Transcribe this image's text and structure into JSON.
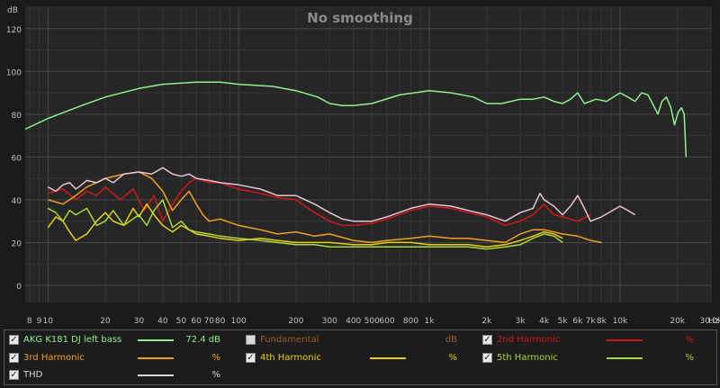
{
  "chart_data": {
    "type": "line",
    "title": "No smoothing",
    "y_unit": "dB",
    "x_unit": "Hz",
    "ylim": [
      -8,
      130
    ],
    "xlim": [
      7.6,
      30000
    ],
    "xscale": "log",
    "grid": true,
    "y_ticks": [
      "0",
      "20",
      "40",
      "60",
      "80",
      "100",
      "120"
    ],
    "x_ticks": [
      {
        "v": 8,
        "t": "8"
      },
      {
        "v": 9,
        "t": "9"
      },
      {
        "v": 10,
        "t": "10"
      },
      {
        "v": 20,
        "t": "20"
      },
      {
        "v": 30,
        "t": "30"
      },
      {
        "v": 40,
        "t": "40"
      },
      {
        "v": 50,
        "t": "50"
      },
      {
        "v": 60,
        "t": "60"
      },
      {
        "v": 70,
        "t": "70"
      },
      {
        "v": 80,
        "t": "80"
      },
      {
        "v": 100,
        "t": "100"
      },
      {
        "v": 200,
        "t": "200"
      },
      {
        "v": 300,
        "t": "300"
      },
      {
        "v": 400,
        "t": "400"
      },
      {
        "v": 500,
        "t": "500"
      },
      {
        "v": 600,
        "t": "600"
      },
      {
        "v": 800,
        "t": "800"
      },
      {
        "v": 1000,
        "t": "1k"
      },
      {
        "v": 2000,
        "t": "2k"
      },
      {
        "v": 3000,
        "t": "3k"
      },
      {
        "v": 4000,
        "t": "4k"
      },
      {
        "v": 5000,
        "t": "5k"
      },
      {
        "v": 6000,
        "t": "6k"
      },
      {
        "v": 7000,
        "t": "7k"
      },
      {
        "v": 8000,
        "t": "8k"
      },
      {
        "v": 10000,
        "t": "10k"
      },
      {
        "v": 20000,
        "t": "20k"
      },
      {
        "v": 30000,
        "t": "30.0k"
      }
    ],
    "series": [
      {
        "key": "main",
        "color": "#8ef08e",
        "points": [
          [
            7.6,
            73
          ],
          [
            10,
            78
          ],
          [
            15,
            84
          ],
          [
            20,
            88
          ],
          [
            30,
            92
          ],
          [
            40,
            94
          ],
          [
            60,
            95
          ],
          [
            80,
            95
          ],
          [
            100,
            94
          ],
          [
            150,
            93
          ],
          [
            200,
            91
          ],
          [
            260,
            88
          ],
          [
            300,
            85
          ],
          [
            350,
            84
          ],
          [
            400,
            84
          ],
          [
            500,
            85
          ],
          [
            700,
            89
          ],
          [
            1000,
            91
          ],
          [
            1300,
            90
          ],
          [
            1700,
            88
          ],
          [
            2000,
            85
          ],
          [
            2400,
            85
          ],
          [
            3000,
            87
          ],
          [
            3500,
            87
          ],
          [
            4000,
            88
          ],
          [
            4500,
            86
          ],
          [
            5000,
            85
          ],
          [
            5500,
            87
          ],
          [
            6000,
            90
          ],
          [
            6500,
            85
          ],
          [
            7500,
            87
          ],
          [
            8500,
            86
          ],
          [
            10000,
            90
          ],
          [
            11000,
            88
          ],
          [
            12000,
            86
          ],
          [
            13000,
            90
          ],
          [
            14000,
            89
          ],
          [
            15000,
            84
          ],
          [
            15800,
            80
          ],
          [
            16600,
            86
          ],
          [
            17500,
            88
          ],
          [
            18500,
            83
          ],
          [
            19300,
            75
          ],
          [
            20200,
            81
          ],
          [
            21000,
            83
          ],
          [
            21700,
            80
          ],
          [
            22200,
            60
          ]
        ]
      },
      {
        "key": "h2",
        "color": "#d01818",
        "points": [
          [
            10,
            43
          ],
          [
            12,
            45
          ],
          [
            14,
            40
          ],
          [
            16,
            44
          ],
          [
            18,
            42
          ],
          [
            20,
            46
          ],
          [
            24,
            40
          ],
          [
            28,
            45
          ],
          [
            32,
            35
          ],
          [
            36,
            42
          ],
          [
            40,
            30
          ],
          [
            45,
            38
          ],
          [
            50,
            44
          ],
          [
            55,
            48
          ],
          [
            60,
            50
          ],
          [
            70,
            48
          ],
          [
            80,
            48
          ],
          [
            100,
            45
          ],
          [
            130,
            43
          ],
          [
            160,
            41
          ],
          [
            200,
            40
          ],
          [
            250,
            34
          ],
          [
            300,
            30
          ],
          [
            350,
            28
          ],
          [
            400,
            28
          ],
          [
            500,
            29
          ],
          [
            600,
            31
          ],
          [
            800,
            35
          ],
          [
            1000,
            37
          ],
          [
            1300,
            36
          ],
          [
            1600,
            34
          ],
          [
            2000,
            32
          ],
          [
            2500,
            28
          ],
          [
            3000,
            30
          ],
          [
            3500,
            33
          ],
          [
            4000,
            38
          ],
          [
            4500,
            33
          ],
          [
            5000,
            32
          ],
          [
            6000,
            30
          ],
          [
            7000,
            33
          ]
        ]
      },
      {
        "key": "h3",
        "color": "#f0a020",
        "points": [
          [
            10,
            40
          ],
          [
            12,
            38
          ],
          [
            14,
            42
          ],
          [
            16,
            46
          ],
          [
            18,
            48
          ],
          [
            20,
            50
          ],
          [
            25,
            52
          ],
          [
            30,
            53
          ],
          [
            35,
            50
          ],
          [
            40,
            44
          ],
          [
            45,
            35
          ],
          [
            50,
            40
          ],
          [
            55,
            44
          ],
          [
            60,
            38
          ],
          [
            65,
            33
          ],
          [
            70,
            30
          ],
          [
            80,
            31
          ],
          [
            100,
            28
          ],
          [
            130,
            26
          ],
          [
            160,
            24
          ],
          [
            200,
            25
          ],
          [
            250,
            23
          ],
          [
            300,
            24
          ],
          [
            400,
            21
          ],
          [
            500,
            20
          ],
          [
            600,
            21
          ],
          [
            800,
            22
          ],
          [
            1000,
            23
          ],
          [
            1300,
            22
          ],
          [
            1600,
            22
          ],
          [
            2000,
            21
          ],
          [
            2500,
            20
          ],
          [
            3000,
            24
          ],
          [
            3500,
            26
          ],
          [
            4000,
            26
          ],
          [
            5000,
            24
          ],
          [
            6000,
            23
          ],
          [
            7000,
            21
          ],
          [
            8000,
            20
          ]
        ]
      },
      {
        "key": "h4",
        "color": "#e8d010",
        "points": [
          [
            10,
            27
          ],
          [
            11,
            32
          ],
          [
            12,
            30
          ],
          [
            13,
            25
          ],
          [
            14,
            21
          ],
          [
            16,
            24
          ],
          [
            18,
            30
          ],
          [
            20,
            34
          ],
          [
            22,
            30
          ],
          [
            25,
            28
          ],
          [
            28,
            36
          ],
          [
            30,
            32
          ],
          [
            33,
            38
          ],
          [
            36,
            33
          ],
          [
            40,
            28
          ],
          [
            45,
            25
          ],
          [
            50,
            28
          ],
          [
            60,
            24
          ],
          [
            70,
            23
          ],
          [
            80,
            22
          ],
          [
            100,
            21
          ],
          [
            130,
            22
          ],
          [
            160,
            21
          ],
          [
            200,
            20
          ],
          [
            250,
            20
          ],
          [
            300,
            20
          ],
          [
            400,
            19
          ],
          [
            500,
            19
          ],
          [
            600,
            20
          ],
          [
            800,
            20
          ],
          [
            1000,
            19
          ],
          [
            1300,
            19
          ],
          [
            1600,
            19
          ],
          [
            2000,
            18
          ],
          [
            2500,
            19
          ],
          [
            3000,
            21
          ],
          [
            3500,
            23
          ],
          [
            4000,
            25
          ],
          [
            4500,
            24
          ],
          [
            5000,
            22
          ]
        ]
      },
      {
        "key": "h5",
        "color": "#a8d838",
        "points": [
          [
            10,
            36
          ],
          [
            11,
            34
          ],
          [
            12,
            30
          ],
          [
            13,
            35
          ],
          [
            14,
            33
          ],
          [
            16,
            36
          ],
          [
            18,
            28
          ],
          [
            20,
            30
          ],
          [
            22,
            35
          ],
          [
            25,
            28
          ],
          [
            30,
            33
          ],
          [
            33,
            28
          ],
          [
            36,
            35
          ],
          [
            40,
            40
          ],
          [
            45,
            27
          ],
          [
            50,
            30
          ],
          [
            55,
            26
          ],
          [
            60,
            25
          ],
          [
            70,
            24
          ],
          [
            80,
            23
          ],
          [
            100,
            22
          ],
          [
            130,
            21
          ],
          [
            160,
            20
          ],
          [
            200,
            19
          ],
          [
            250,
            19
          ],
          [
            300,
            18
          ],
          [
            400,
            18
          ],
          [
            500,
            18
          ],
          [
            600,
            18
          ],
          [
            800,
            18
          ],
          [
            1000,
            18
          ],
          [
            1300,
            18
          ],
          [
            1600,
            18
          ],
          [
            2000,
            17
          ],
          [
            2500,
            18
          ],
          [
            3000,
            19
          ],
          [
            3500,
            22
          ],
          [
            4000,
            24
          ],
          [
            4500,
            23
          ],
          [
            5000,
            20
          ]
        ]
      },
      {
        "key": "thd",
        "color": "#e8c4d0",
        "points": [
          [
            10,
            46
          ],
          [
            11,
            44
          ],
          [
            12,
            47
          ],
          [
            13,
            48
          ],
          [
            14,
            45
          ],
          [
            15,
            47
          ],
          [
            16,
            49
          ],
          [
            18,
            48
          ],
          [
            20,
            50
          ],
          [
            22,
            48
          ],
          [
            25,
            52
          ],
          [
            30,
            53
          ],
          [
            35,
            52
          ],
          [
            40,
            55
          ],
          [
            45,
            52
          ],
          [
            50,
            51
          ],
          [
            55,
            52
          ],
          [
            60,
            50
          ],
          [
            70,
            49
          ],
          [
            80,
            48
          ],
          [
            100,
            47
          ],
          [
            130,
            45
          ],
          [
            160,
            42
          ],
          [
            200,
            42
          ],
          [
            250,
            38
          ],
          [
            300,
            34
          ],
          [
            350,
            31
          ],
          [
            400,
            30
          ],
          [
            500,
            30
          ],
          [
            600,
            32
          ],
          [
            800,
            36
          ],
          [
            1000,
            38
          ],
          [
            1300,
            37
          ],
          [
            1600,
            35
          ],
          [
            2000,
            33
          ],
          [
            2500,
            30
          ],
          [
            3000,
            34
          ],
          [
            3500,
            36
          ],
          [
            3800,
            43
          ],
          [
            4000,
            40
          ],
          [
            4500,
            37
          ],
          [
            5000,
            33
          ],
          [
            5500,
            37
          ],
          [
            6000,
            42
          ],
          [
            6500,
            36
          ],
          [
            7000,
            30
          ],
          [
            8000,
            32
          ],
          [
            10000,
            37
          ],
          [
            11000,
            35
          ],
          [
            12000,
            33
          ]
        ]
      }
    ]
  },
  "legend": {
    "items": [
      {
        "key": "main",
        "label": "AKG K181 DJ left bass",
        "checked": true,
        "value": "72.4 dB",
        "color": "#8ef08e",
        "col": 0,
        "row": 0
      },
      {
        "key": "fund",
        "label": "Fundamental",
        "checked": false,
        "value": "dB",
        "color": "#a05828",
        "col": 1,
        "row": 0
      },
      {
        "key": "h2",
        "label": "2nd Harmonic",
        "checked": true,
        "value": "%",
        "color": "#d01818",
        "col": 2,
        "row": 0
      },
      {
        "key": "h3",
        "label": "3rd Harmonic",
        "checked": true,
        "value": "%",
        "color": "#f0a020",
        "col": 0,
        "row": 1
      },
      {
        "key": "h4",
        "label": "4th Harmonic",
        "checked": true,
        "value": "%",
        "color": "#e8d010",
        "col": 1,
        "row": 1
      },
      {
        "key": "h5",
        "label": "5th Harmonic",
        "checked": true,
        "value": "%",
        "color": "#a8d838",
        "col": 2,
        "row": 1
      },
      {
        "key": "thd",
        "label": "THD",
        "checked": true,
        "value": "%",
        "color": "#d8d8d8",
        "col": 0,
        "row": 2
      }
    ],
    "check_glyph": "✓"
  }
}
